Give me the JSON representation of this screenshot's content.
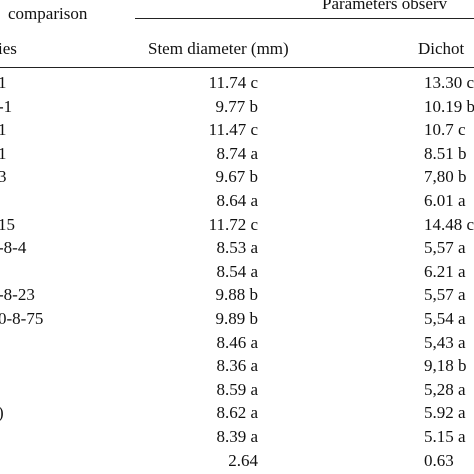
{
  "header": {
    "col1_line1": "comparison",
    "col1_line2": "ies",
    "group": "Parameters observ",
    "col2": "Stem diameter (mm)",
    "col3": "Dichot"
  },
  "rows": [
    {
      "name": "1",
      "stem": "11.74 c",
      "dich": "13.30 c"
    },
    {
      "name": "-1",
      "stem": "9.77 b",
      "dich": "10.19 b"
    },
    {
      "name": "1",
      "stem": "11.47 c",
      "dich": "10.7 c"
    },
    {
      "name": "1",
      "stem": "8.74 a",
      "dich": "8.51 b"
    },
    {
      "name": "3",
      "stem": "9.67 b",
      "dich": "7,80 b"
    },
    {
      "name": "",
      "stem": "8.64 a",
      "dich": "6.01 a"
    },
    {
      "name": "15",
      "stem": "11.72 c",
      "dich": "14.48 c"
    },
    {
      "name": "-8-4",
      "stem": "8.53 a",
      "dich": "5,57 a"
    },
    {
      "name": "",
      "stem": "8.54 a",
      "dich": "6.21 a"
    },
    {
      "name": "-8-23",
      "stem": "9.88 b",
      "dich": "5,57 a"
    },
    {
      "name": "0-8-75",
      "stem": "9.89 b",
      "dich": "5,54 a"
    },
    {
      "name": "",
      "stem": "8.46 a",
      "dich": "5,43 a"
    },
    {
      "name": "",
      "stem": "8.36 a",
      "dich": "9,18 b"
    },
    {
      "name": "",
      "stem": "8.59 a",
      "dich": "5,28 a"
    },
    {
      "name": ")",
      "stem": "8.62 a",
      "dich": "5.92 a"
    },
    {
      "name": "",
      "stem": "8.39 a",
      "dich": "5.15 a"
    },
    {
      "name": "",
      "stem": "2.64",
      "dich": "0.63"
    }
  ]
}
